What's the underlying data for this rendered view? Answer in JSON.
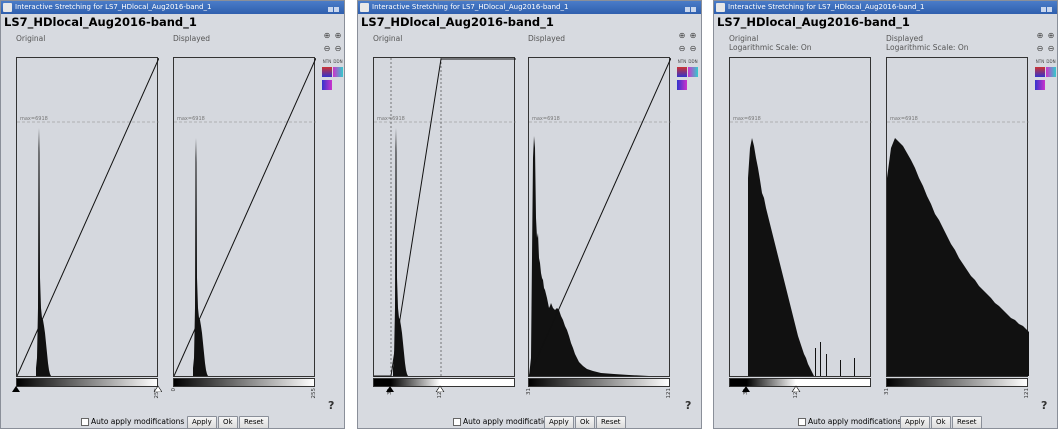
{
  "windows": [
    {
      "title": "Interactive Stretching for LS7_HDlocal_Aug2016-band_1",
      "dataset": "LS7_HDlocal_Aug2016-band_1",
      "original_label": "Original",
      "displayed_label": "Displayed",
      "log_label": "",
      "max_label": "max=6918",
      "orig_ticks": [
        "0",
        "255"
      ],
      "disp_ticks": [
        "0",
        "255"
      ]
    },
    {
      "title": "Interactive Stretching for LS7_HDlocal_Aug2016-band_1",
      "dataset": "LS7_HDlocal_Aug2016-band_1",
      "original_label": "Original",
      "displayed_label": "Displayed",
      "log_label": "",
      "max_label": "max=6918",
      "orig_ticks": [
        "31",
        "121"
      ],
      "disp_ticks": [
        "31",
        "121"
      ]
    },
    {
      "title": "Interactive Stretching for LS7_HDlocal_Aug2016-band_1",
      "dataset": "LS7_HDlocal_Aug2016-band_1",
      "original_label": "Original",
      "displayed_label": "Displayed",
      "log_label": "Logarithmic Scale: On",
      "max_label": "max=6918",
      "orig_ticks": [
        "31",
        "121"
      ],
      "disp_ticks": [
        "31",
        "121"
      ]
    }
  ],
  "tools": {
    "ntn": "NTN",
    "ddn": "DDN",
    "question": "?"
  },
  "bottom": {
    "auto_label": "Auto apply modifications",
    "apply_label": "Apply",
    "ok_label": "Ok",
    "reset_label": "Reset"
  }
}
